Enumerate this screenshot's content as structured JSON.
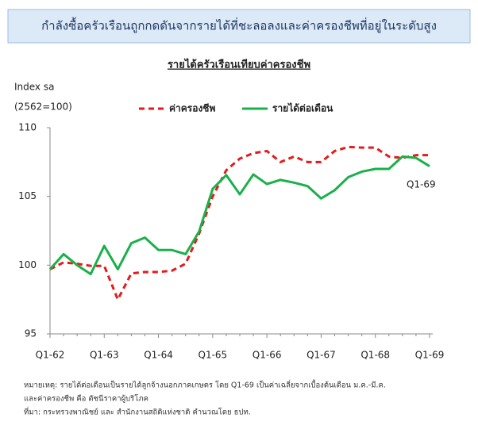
{
  "banner": "กำลังซื้อครัวเรือนถูกกดดันจากรายได้ที่ชะลอลงและค่าครองชีพที่อยู่ในระดับสูง",
  "chart_data": {
    "type": "line",
    "title": "รายได้ครัวเรือนเทียบค่าครองชีพ",
    "ylabel": "Index sa",
    "ylabel_note": "(2562=100)",
    "annotation": "Q1-69",
    "categories": [
      "Q1-62",
      null,
      null,
      null,
      "Q1-63",
      null,
      null,
      null,
      "Q1-64",
      null,
      null,
      null,
      "Q1-65",
      null,
      null,
      null,
      "Q1-66",
      null,
      null,
      null,
      "Q1-67",
      null,
      null,
      null,
      "Q1-68",
      null,
      null,
      null,
      "Q1-69"
    ],
    "series": [
      {
        "name": "ค่าครองชีพ",
        "color": "#e41a1c",
        "dashed": true,
        "values": [
          99.7,
          100.2,
          100.1,
          99.95,
          99.95,
          97.5,
          99.4,
          99.5,
          99.5,
          99.6,
          100.1,
          102.3,
          105.0,
          106.9,
          107.75,
          108.15,
          108.3,
          107.5,
          107.9,
          107.5,
          107.5,
          108.3,
          108.6,
          108.55,
          108.55,
          107.9,
          107.8,
          108.0,
          108.0
        ]
      },
      {
        "name": "รายได้ต่อเดือน",
        "color": "#1ab04a",
        "dashed": false,
        "values": [
          99.7,
          100.8,
          100.0,
          99.35,
          101.4,
          99.7,
          101.6,
          102.0,
          101.1,
          101.1,
          100.8,
          102.45,
          105.55,
          106.55,
          105.15,
          106.6,
          105.9,
          106.2,
          106.0,
          105.75,
          104.85,
          105.45,
          106.4,
          106.8,
          107.0,
          107.0,
          107.9,
          107.8,
          107.2
        ]
      }
    ],
    "ylim": [
      95,
      110
    ],
    "yticks": [
      95,
      100,
      105,
      110
    ],
    "grid": false
  },
  "notes": [
    "หมายเหตุ: รายได้ต่อเดือนเป็นรายได้ลูกจ้างนอกภาคเกษตร โดย Q1-69 เป็นค่าเฉลี่ยจากเบื้องต้นเดือน ม.ค.-มี.ค.",
    "และค่าครองชีพ คือ ดัชนีราคาผู้บริโภค",
    "ที่มา: กระทรวงพาณิชย์ และ สำนักงานสถิติแห่งชาติ คำนวณโดย ธปท."
  ]
}
